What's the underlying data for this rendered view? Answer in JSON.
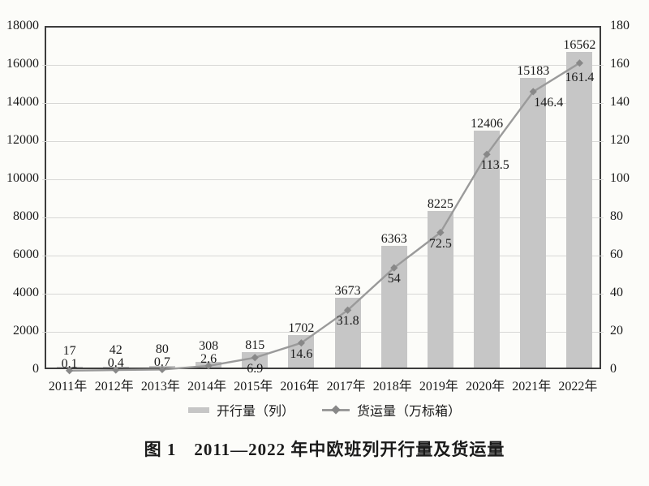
{
  "chart_data": {
    "type": "bar",
    "subtype": "bar+line combo",
    "title": "图 1　2011—2022 年中欧班列开行量及货运量",
    "categories": [
      "2011年",
      "2012年",
      "2013年",
      "2014年",
      "2015年",
      "2016年",
      "2017年",
      "2018年",
      "2019年",
      "2020年",
      "2021年",
      "2022年"
    ],
    "series": [
      {
        "name": "开行量（列）",
        "type": "bar",
        "axis": "left",
        "values": [
          17,
          42,
          80,
          308,
          815,
          1702,
          3673,
          6363,
          8225,
          12406,
          15183,
          16562
        ]
      },
      {
        "name": "货运量（万标箱）",
        "type": "line",
        "axis": "right",
        "values": [
          0.1,
          0.4,
          0.7,
          2.6,
          6.9,
          14.6,
          31.8,
          54,
          72.5,
          113.5,
          146.4,
          161.4
        ]
      }
    ],
    "left_axis": {
      "min": 0,
      "max": 18000,
      "step": 2000,
      "ticks": [
        "0",
        "2000",
        "4000",
        "6000",
        "8000",
        "10000",
        "12000",
        "14000",
        "16000",
        "18000"
      ]
    },
    "right_axis": {
      "min": 0,
      "max": 180,
      "step": 20,
      "ticks": [
        "0",
        "20",
        "40",
        "60",
        "80",
        "100",
        "120",
        "140",
        "160",
        "180"
      ]
    },
    "grid": true,
    "legend_position": "bottom",
    "colors": {
      "bar": "#c6c6c6",
      "line": "#9a9a9a",
      "marker": "#888888",
      "text": "#1a1a1a",
      "border": "#3d3d3d",
      "grid": "#d8d8d6",
      "background": "#fcfcf9"
    }
  },
  "legend": {
    "items": [
      {
        "label": "开行量（列）",
        "swatch": "bar"
      },
      {
        "label": "货运量（万标箱）",
        "swatch": "line-diamond"
      }
    ]
  },
  "caption": "图 1　2011—2022 年中欧班列开行量及货运量"
}
